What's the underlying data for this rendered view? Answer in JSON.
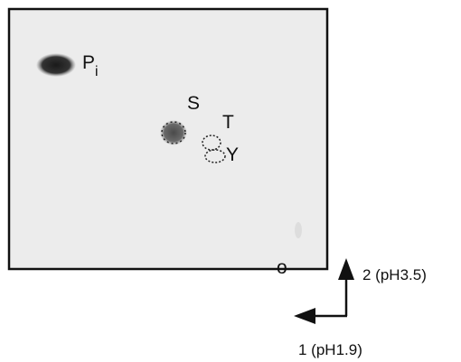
{
  "spots": {
    "pi": "P",
    "pi_subscript": "i",
    "serine": "S",
    "threonine": "T",
    "tyrosine": "Y",
    "origin": "o"
  },
  "axes": {
    "dimension_2": "2 (pH3.5)",
    "dimension_1": "1 (pH1.9)"
  }
}
